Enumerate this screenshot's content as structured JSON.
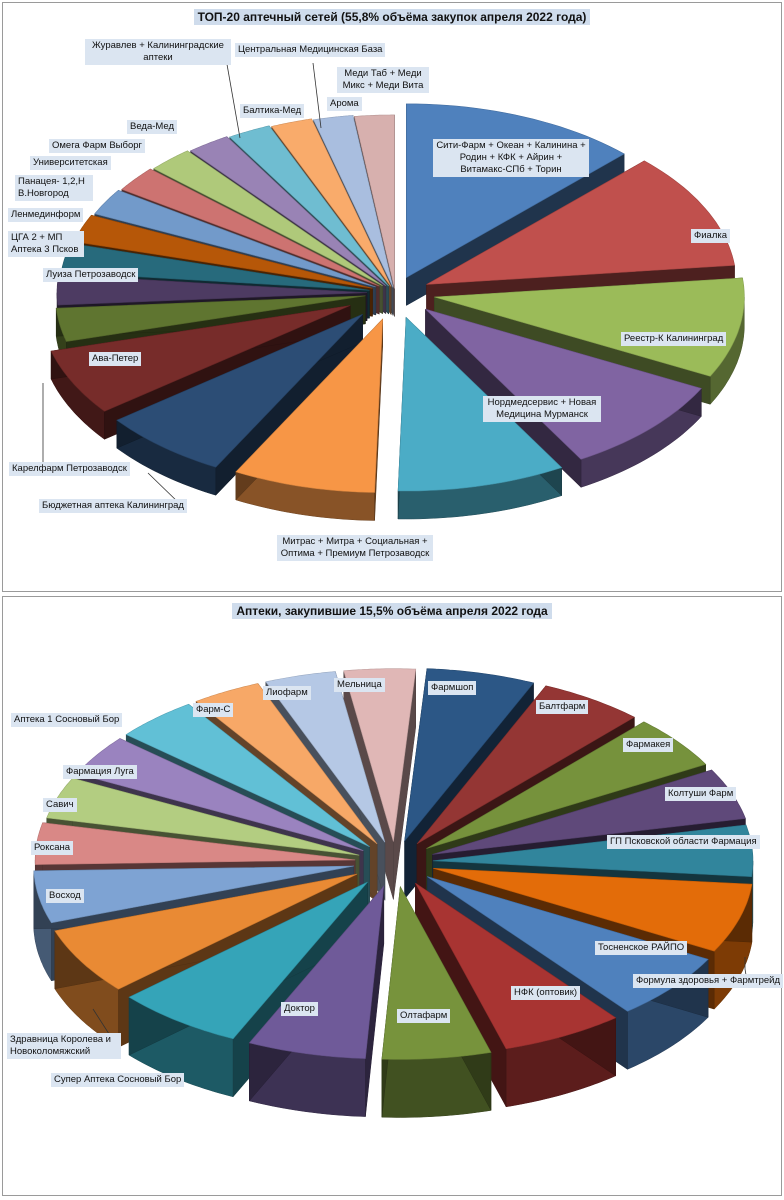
{
  "charts": [
    {
      "title": "ТОП-20 аптечный сетей (55,8% объёма закупок апреля 2022 года)",
      "chart_data": {
        "type": "pie",
        "style": "exploded 3D pie",
        "title": "ТОП-20 аптечный сетей (55,8% объёма закупок апреля 2022 года)",
        "legend": "none (data labels)",
        "categories": [
          "Сити-Фарм + Океан + Калинина + Родин + КФК + Айрин + Витамакс-СПб + Торин",
          "Фиалка",
          "Реестр-К Калининград",
          "Нордмедсервис + Новая Медицина Мурманск",
          "Митрас + Митра + Социальная + Оптима + Премиум Петрозаводск",
          "Бюджетная аптека Калининград",
          "Карелфарм Петрозаводск",
          "Ава-Петер",
          "Луиза Петрозаводск",
          "ЦГА 2 + МП Аптека 3 Псков",
          "Ленмединформ",
          "Панацея- 1,2,Н В.Новгород",
          "Университетская",
          "Омега Фарм Выборг",
          "Веда-Мед",
          "Журавлев + Калининградские аптеки",
          "Балтика-Мед",
          "Центральная Медицинская База",
          "Арома",
          "Меди Таб + Меди Микс + Меди Вита"
        ],
        "values": [
          12.0,
          10.5,
          9.0,
          8.8,
          8.5,
          7.2,
          6.5,
          6.0,
          3.0,
          2.7,
          2.6,
          2.5,
          2.4,
          2.3,
          2.3,
          2.2,
          2.2,
          2.1,
          2.0,
          2.0
        ]
      }
    },
    {
      "title": "Аптеки, закупившие 15,5% объёма апреля 2022 года",
      "chart_data": {
        "type": "pie",
        "style": "exploded 3D pie",
        "title": "Аптеки, закупившие 15,5% объёма апреля 2022 года",
        "legend": "none (data labels)",
        "categories": [
          "Фармшоп",
          "Балтфарм",
          "Фармакея",
          "Колтуши Фарм",
          "ГП Псковской области Фармация",
          "Формула здоровья + Фармтрейд",
          "Тосненское РАЙПО",
          "НФК (оптовик)",
          "Олтафарм",
          "Доктор",
          "Супер Аптека Сосновый Бор",
          "Здравница Королева и Новоколомяжский",
          "Восход",
          "Роксана",
          "Савич",
          "Фармация Луга",
          "Аптека 1 Сосновый Бор",
          "Фарм-С",
          "Лиофарм",
          "Мельница"
        ],
        "values": [
          5.5,
          5.3,
          5.0,
          4.8,
          4.8,
          6.5,
          6.3,
          6.2,
          5.5,
          6.0,
          6.5,
          6.3,
          4.9,
          3.9,
          3.9,
          3.9,
          4.2,
          3.5,
          3.6,
          3.6
        ]
      }
    }
  ],
  "palette": [
    "#4f81bd",
    "#c0504d",
    "#9bbb59",
    "#8064a2",
    "#4bacc6",
    "#f79646",
    "#2c4d75",
    "#772c2a",
    "#5f7530",
    "#4d3b62",
    "#276a7c",
    "#b65708",
    "#729aca",
    "#cd7371",
    "#afc97a",
    "#9983b5",
    "#6fbdd1",
    "#f9ab6b",
    "#a9bedf",
    "#d7b0ae"
  ],
  "palette2": [
    "#2c5786",
    "#943634",
    "#76923c",
    "#5f497a",
    "#31859c",
    "#e36c09",
    "#4f81bd",
    "#a83432",
    "#77933c",
    "#6f5a99",
    "#35a4b8",
    "#e98a34",
    "#7ea3d3",
    "#d98886",
    "#b3cd81",
    "#9a83bf",
    "#61c0d6",
    "#f7a867",
    "#b5c8e5",
    "#e0b7b6"
  ]
}
